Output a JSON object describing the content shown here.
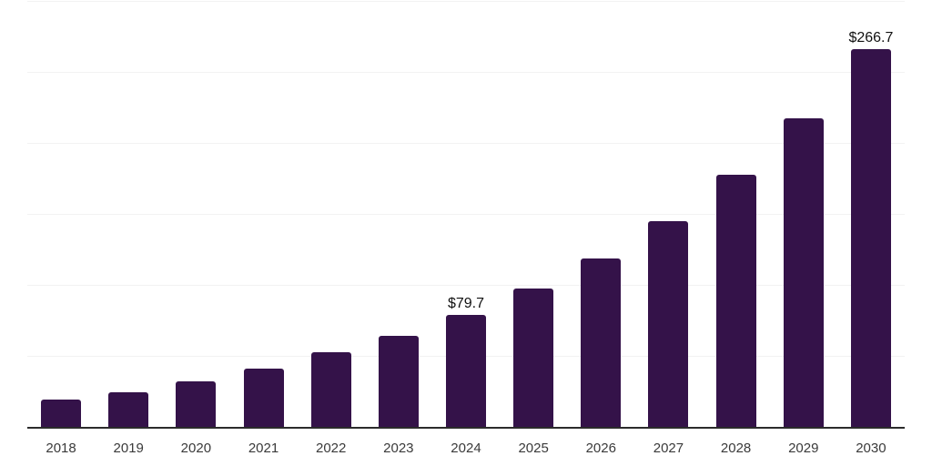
{
  "chart_data": {
    "type": "bar",
    "title": "",
    "xlabel": "",
    "ylabel": "",
    "categories": [
      "2018",
      "2019",
      "2020",
      "2021",
      "2022",
      "2023",
      "2024",
      "2025",
      "2026",
      "2027",
      "2028",
      "2029",
      "2030"
    ],
    "values": [
      19.9,
      25.1,
      32.5,
      41.5,
      53.4,
      64.9,
      79.7,
      97.8,
      119.2,
      145.3,
      178.4,
      217.8,
      266.7
    ],
    "value_labels": [
      {
        "category": "2024",
        "index": 6,
        "text": "$79.7"
      },
      {
        "category": "2030",
        "index": 12,
        "text": "$266.7"
      }
    ],
    "ylim": [
      0,
      300
    ],
    "gridline_step": 50,
    "grid": true,
    "legend": "none",
    "y_axis_tick_labels": "none",
    "colors": {
      "bar": "#341249",
      "axis": "#2b2b2b",
      "gridline": "#f2f2f2",
      "tick_label": "#3a3a3a",
      "value_label": "#111111",
      "background": "#ffffff"
    }
  }
}
